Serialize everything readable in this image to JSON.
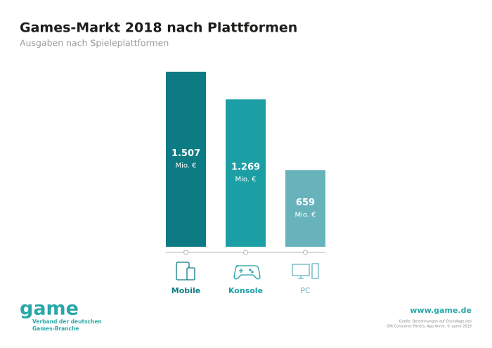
{
  "chart_data": {
    "type": "bar",
    "title": "Games-Markt 2018 nach Plattformen",
    "subtitle": "Ausgaben nach Spieleplattformen",
    "categories": [
      "Mobile",
      "Konsole",
      "PC"
    ],
    "values": [
      1507,
      1269,
      659
    ],
    "value_labels": [
      "1.507",
      "1.269",
      "659"
    ],
    "unit": "Mio. €",
    "colors": [
      "#0d7b84",
      "#1b9fa5",
      "#68b3bb"
    ]
  },
  "branding": {
    "logo": "game",
    "tagline": [
      "Verband der deutschen",
      "Games-Branche"
    ],
    "website": "www.game.de",
    "source": [
      "Quelle: Berechnungen auf Grundlage des",
      "GfK Consumer Panels, App Annie. © game 2019"
    ]
  }
}
